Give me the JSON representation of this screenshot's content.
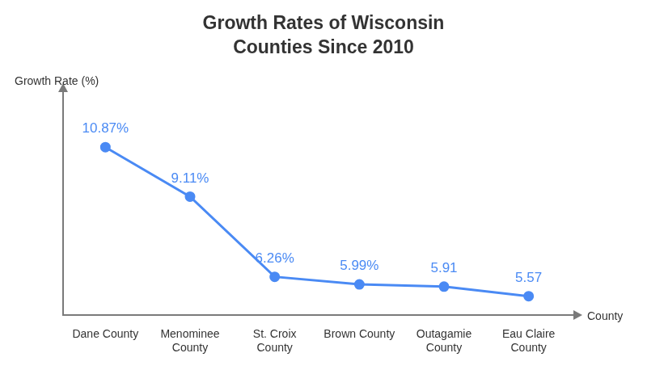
{
  "chart_data": {
    "type": "line",
    "title": "Growth Rates of Wisconsin Counties Since 2010",
    "y_label": "Growth Rate (%)",
    "x_label": "County",
    "categories": [
      "Dane County",
      "Menominee County",
      "St. Croix County",
      "Brown County",
      "Outagamie County",
      "Eau Claire County"
    ],
    "values": [
      10.87,
      9.11,
      6.26,
      5.99,
      5.91,
      5.57
    ],
    "value_labels": [
      "10.87%",
      "9.11%",
      "6.26%",
      "5.99%",
      "5.91",
      "5.57"
    ],
    "color": "#4a8af4",
    "marker": "circle",
    "line_style": "solid",
    "ylim": [
      4.9,
      12.8
    ],
    "grid": false,
    "data_labels": true,
    "tick_labels": "x"
  }
}
